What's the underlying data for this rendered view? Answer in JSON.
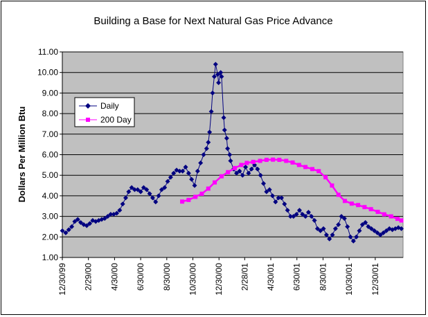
{
  "chart_data": {
    "type": "line",
    "title": "Building a Base for Next Natural Gas Price Advance",
    "xlabel": "",
    "ylabel": "Dollars Per Million Btu",
    "ylim": [
      1.0,
      11.0
    ],
    "ytick_labels": [
      "1.00",
      "2.00",
      "3.00",
      "4.00",
      "5.00",
      "6.00",
      "7.00",
      "8.00",
      "9.00",
      "10.00",
      "11.00"
    ],
    "x_range": [
      "1999-12-30",
      "2002-03-05"
    ],
    "xtick_labels": [
      "12/30/99",
      "2/29/00",
      "4/30/00",
      "6/30/00",
      "8/30/00",
      "10/30/00",
      "12/30/00",
      "2/28/01",
      "4/30/01",
      "6/30/01",
      "8/30/01",
      "10/30/01",
      "12/30/01"
    ],
    "xtick_dates": [
      "1999-12-30",
      "2000-02-29",
      "2000-04-30",
      "2000-06-30",
      "2000-08-30",
      "2000-10-30",
      "2000-12-30",
      "2001-02-28",
      "2001-04-30",
      "2001-06-30",
      "2001-08-30",
      "2001-10-30",
      "2001-12-30"
    ],
    "grid": "horizontal",
    "plot_background": "#c0c0c0",
    "legend_position": "upper-left",
    "series": [
      {
        "name": "Daily",
        "color": "#000080",
        "marker": "diamond",
        "x": [
          "1999-12-30",
          "2000-01-07",
          "2000-01-14",
          "2000-01-21",
          "2000-01-28",
          "2000-02-04",
          "2000-02-11",
          "2000-02-18",
          "2000-02-25",
          "2000-03-03",
          "2000-03-10",
          "2000-03-17",
          "2000-03-24",
          "2000-03-31",
          "2000-04-07",
          "2000-04-14",
          "2000-04-21",
          "2000-04-28",
          "2000-05-05",
          "2000-05-12",
          "2000-05-19",
          "2000-05-26",
          "2000-06-02",
          "2000-06-09",
          "2000-06-16",
          "2000-06-23",
          "2000-06-30",
          "2000-07-07",
          "2000-07-14",
          "2000-07-21",
          "2000-07-28",
          "2000-08-04",
          "2000-08-11",
          "2000-08-18",
          "2000-08-25",
          "2000-09-01",
          "2000-09-08",
          "2000-09-15",
          "2000-09-22",
          "2000-09-29",
          "2000-10-06",
          "2000-10-13",
          "2000-10-20",
          "2000-10-27",
          "2000-11-03",
          "2000-11-10",
          "2000-11-17",
          "2000-11-24",
          "2000-12-01",
          "2000-12-05",
          "2000-12-08",
          "2000-12-12",
          "2000-12-15",
          "2000-12-19",
          "2000-12-22",
          "2000-12-27",
          "2000-12-29",
          "2001-01-03",
          "2001-01-05",
          "2001-01-10",
          "2001-01-12",
          "2001-01-17",
          "2001-01-19",
          "2001-01-24",
          "2001-01-26",
          "2001-02-02",
          "2001-02-09",
          "2001-02-16",
          "2001-02-23",
          "2001-03-02",
          "2001-03-09",
          "2001-03-16",
          "2001-03-23",
          "2001-03-30",
          "2001-04-06",
          "2001-04-13",
          "2001-04-20",
          "2001-04-27",
          "2001-05-04",
          "2001-05-11",
          "2001-05-18",
          "2001-05-25",
          "2001-06-01",
          "2001-06-08",
          "2001-06-15",
          "2001-06-22",
          "2001-06-29",
          "2001-07-06",
          "2001-07-13",
          "2001-07-20",
          "2001-07-27",
          "2001-08-03",
          "2001-08-10",
          "2001-08-17",
          "2001-08-24",
          "2001-08-31",
          "2001-09-07",
          "2001-09-14",
          "2001-09-21",
          "2001-09-28",
          "2001-10-05",
          "2001-10-12",
          "2001-10-19",
          "2001-10-26",
          "2001-11-02",
          "2001-11-09",
          "2001-11-16",
          "2001-11-23",
          "2001-11-30",
          "2001-12-07",
          "2001-12-14",
          "2001-12-21",
          "2001-12-28",
          "2002-01-04",
          "2002-01-11",
          "2002-01-18",
          "2002-01-25",
          "2002-02-01",
          "2002-02-08",
          "2002-02-15",
          "2002-02-22",
          "2002-03-01"
        ],
        "values": [
          2.3,
          2.2,
          2.35,
          2.5,
          2.75,
          2.85,
          2.7,
          2.6,
          2.55,
          2.65,
          2.8,
          2.75,
          2.8,
          2.85,
          2.9,
          3.0,
          3.1,
          3.1,
          3.15,
          3.3,
          3.6,
          3.9,
          4.2,
          4.4,
          4.3,
          4.3,
          4.2,
          4.4,
          4.3,
          4.1,
          3.9,
          3.7,
          4.0,
          4.3,
          4.4,
          4.7,
          4.9,
          5.1,
          5.25,
          5.2,
          5.2,
          5.4,
          5.1,
          4.8,
          4.5,
          5.2,
          5.6,
          6.0,
          6.3,
          6.6,
          7.1,
          8.1,
          9.0,
          9.8,
          10.4,
          9.9,
          9.5,
          10.0,
          9.8,
          7.8,
          7.2,
          6.8,
          6.3,
          6.0,
          5.7,
          5.3,
          5.1,
          5.2,
          5.0,
          5.4,
          5.1,
          5.3,
          5.5,
          5.3,
          5.0,
          4.6,
          4.2,
          4.3,
          4.0,
          3.7,
          3.9,
          3.9,
          3.6,
          3.3,
          3.0,
          3.0,
          3.1,
          3.3,
          3.1,
          3.0,
          3.2,
          3.0,
          2.8,
          2.4,
          2.3,
          2.4,
          2.1,
          1.9,
          2.1,
          2.4,
          2.6,
          3.0,
          2.9,
          2.5,
          2.0,
          1.8,
          2.0,
          2.3,
          2.6,
          2.7,
          2.5,
          2.4,
          2.3,
          2.2,
          2.1,
          2.2,
          2.3,
          2.4,
          2.35,
          2.4,
          2.45,
          2.4
        ]
      },
      {
        "name": "200 Day",
        "color": "#ff00ff",
        "marker": "square",
        "x": [
          "2000-10-05",
          "2000-10-20",
          "2000-11-05",
          "2000-11-20",
          "2000-12-05",
          "2000-12-20",
          "2001-01-05",
          "2001-01-20",
          "2001-02-05",
          "2001-02-20",
          "2001-03-05",
          "2001-03-20",
          "2001-04-05",
          "2001-04-20",
          "2001-05-05",
          "2001-05-20",
          "2001-06-05",
          "2001-06-20",
          "2001-07-05",
          "2001-07-20",
          "2001-08-05",
          "2001-08-20",
          "2001-09-05",
          "2001-09-20",
          "2001-10-05",
          "2001-10-20",
          "2001-11-05",
          "2001-11-20",
          "2001-12-05",
          "2001-12-20",
          "2002-01-05",
          "2002-01-20",
          "2002-02-05",
          "2002-02-20",
          "2002-03-01"
        ],
        "values": [
          3.72,
          3.8,
          3.95,
          4.1,
          4.35,
          4.65,
          4.95,
          5.15,
          5.35,
          5.5,
          5.6,
          5.65,
          5.7,
          5.75,
          5.76,
          5.75,
          5.7,
          5.62,
          5.5,
          5.4,
          5.3,
          5.2,
          4.9,
          4.5,
          4.05,
          3.75,
          3.62,
          3.55,
          3.45,
          3.35,
          3.22,
          3.1,
          3.0,
          2.88,
          2.8
        ]
      }
    ]
  }
}
